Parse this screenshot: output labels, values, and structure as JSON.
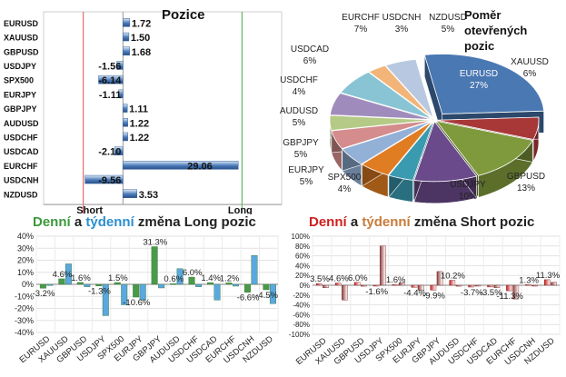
{
  "chart_data": [
    {
      "type": "bar",
      "orientation": "horizontal",
      "title": "Pozice",
      "categories": [
        "EURUSD",
        "XAUUSD",
        "GBPUSD",
        "USDJPY",
        "SPX500",
        "EURJPY",
        "GBPJPY",
        "AUDUSD",
        "USDCHF",
        "USDCAD",
        "EURCHF",
        "USDCNH",
        "NZDUSD"
      ],
      "values": [
        1.72,
        1.5,
        1.68,
        -1.56,
        -6.14,
        -1.11,
        1.11,
        1.22,
        1.22,
        -2.1,
        29.06,
        -9.56,
        3.53
      ],
      "value_labels": [
        "1.72",
        "1.50",
        "1.68",
        "-1.56",
        "-6.14",
        "-1.11",
        "1.11",
        "1.22",
        "1.22",
        "-2.10",
        "29.06",
        "-9.56",
        "3.53"
      ],
      "xlim": [
        -20,
        40
      ],
      "xticks": [
        "-20.0",
        "-10.0",
        "0.0",
        "10.0",
        "20.0",
        "30.0",
        "40.0"
      ],
      "reference_labels": {
        "short": "Short",
        "long": "Long"
      },
      "reference_values": {
        "short": -10,
        "long": 30
      },
      "colors": {
        "bar": "#4a7ab8",
        "bar_light": "#dce8f6",
        "short_line": "#e05050",
        "long_line": "#44aa44"
      }
    },
    {
      "type": "pie",
      "title": "Poměr otevřených pozic",
      "slices": [
        {
          "label": "EURUSD",
          "value": 27,
          "text": "27%",
          "color": "#4a78b2"
        },
        {
          "label": "XAUUSD",
          "value": 6,
          "text": "6%",
          "color": "#a83838"
        },
        {
          "label": "GBPUSD",
          "value": 13,
          "text": "13%",
          "color": "#7f9a3c"
        },
        {
          "label": "USDJPY",
          "value": 10,
          "text": "10%",
          "color": "#6a4a8a"
        },
        {
          "label": "SPX500",
          "value": 4,
          "text": "4%",
          "color": "#3a9ab0"
        },
        {
          "label": "EURJPY",
          "value": 5,
          "text": "5%",
          "color": "#e07c22"
        },
        {
          "label": "GBPJPY",
          "value": 5,
          "text": "5%",
          "color": "#93b0d6"
        },
        {
          "label": "AUDUSD",
          "value": 5,
          "text": "5%",
          "color": "#d48c8c"
        },
        {
          "label": "USDCHF",
          "value": 4,
          "text": "4%",
          "color": "#b4ca86"
        },
        {
          "label": "USDCAD",
          "value": 6,
          "text": "6%",
          "color": "#a08cbc"
        },
        {
          "label": "EURCHF",
          "value": 7,
          "text": "7%",
          "color": "#88c4d4"
        },
        {
          "label": "USDCNH",
          "value": 3,
          "text": "3%",
          "color": "#f2b478"
        },
        {
          "label": "NZDUSD",
          "value": 5,
          "text": "5%",
          "color": "#b8c8e0"
        }
      ]
    },
    {
      "type": "bar",
      "title": "Denní a týdenní změna Long pozic",
      "title_parts": [
        "Denní",
        " a ",
        "týdenní",
        " změna Long pozic"
      ],
      "title_colors": [
        "#3a9a3a",
        "#222222",
        "#2b8fd0",
        "#222222"
      ],
      "categories": [
        "EURUSD",
        "XAUUSD",
        "GBPUSD",
        "USDJPY",
        "SPX500",
        "EURJPY",
        "GBPJPY",
        "AUDUSD",
        "USDCHF",
        "USDCAD",
        "EURCHF",
        "USDCNH",
        "NZDUSD"
      ],
      "series": [
        {
          "name": "Denní",
          "values": [
            -3.2,
            4.6,
            1.6,
            -1.3,
            1.5,
            -10.6,
            31.3,
            0.6,
            6.0,
            1.4,
            1.2,
            -6.6,
            -4.5
          ],
          "color": "#4a9a4a"
        },
        {
          "name": "týdenní",
          "values": [
            -1.0,
            17.0,
            -2.0,
            -26.0,
            -17.0,
            -13.0,
            -3.0,
            13.0,
            -2.0,
            -13.0,
            -1.5,
            24.0,
            -16.0
          ],
          "color": "#5aa8e0"
        }
      ],
      "value_labels": [
        "-3.2%",
        "4.6%",
        "1.6%",
        "-1.3%",
        "1.5%",
        "-10.6%",
        "31.3%",
        "0.6%",
        "6.0%",
        "1.4%",
        "1.2%",
        "-6.6%",
        "-4.5%"
      ],
      "ylim": [
        -40,
        40
      ],
      "yticks": [
        "-40%",
        "-30%",
        "-20%",
        "-10%",
        "0%",
        "10%",
        "20%",
        "30%",
        "40%"
      ]
    },
    {
      "type": "bar",
      "title": "Denní a týdenní změna Short pozic",
      "title_parts": [
        "Denní",
        " a ",
        "týdenní",
        " změna Short pozic"
      ],
      "title_colors": [
        "#d02020",
        "#222222",
        "#c87a3a",
        "#222222"
      ],
      "categories": [
        "EURUSD",
        "XAUUSD",
        "GBPUSD",
        "USDJPY",
        "SPX500",
        "EURJPY",
        "GBPJPY",
        "AUDUSD",
        "USDCHF",
        "USDCAD",
        "EURCHF",
        "USDCNH",
        "NZDUSD"
      ],
      "series": [
        {
          "name": "Denní",
          "values": [
            3.5,
            4.6,
            6.0,
            -1.6,
            1.6,
            -4.4,
            -9.9,
            10.2,
            -3.7,
            -3.5,
            -11.3,
            1.3,
            11.3
          ],
          "color": "#c81818"
        },
        {
          "name": "týdenní",
          "values": [
            -5.0,
            -30.0,
            -2.0,
            80.0,
            5.0,
            -10.0,
            28.0,
            -2.0,
            -1.0,
            -5.0,
            -28.0,
            -1.0,
            6.0
          ],
          "color": "#8a3a3a"
        }
      ],
      "value_labels": [
        "3.5%",
        "4.6%",
        "6.0%",
        "-1.6%",
        "1.6%",
        "-4.4%",
        "-9.9%",
        "10.2%",
        "-3.7%",
        "-3.5%",
        "-11.3%",
        "1.3%",
        "11.3%"
      ],
      "ylim": [
        -100,
        100
      ],
      "yticks": [
        "-100%",
        "-80%",
        "-60%",
        "-40%",
        "-20%",
        "0%",
        "20%",
        "40%",
        "60%",
        "80%",
        "100%"
      ]
    }
  ]
}
